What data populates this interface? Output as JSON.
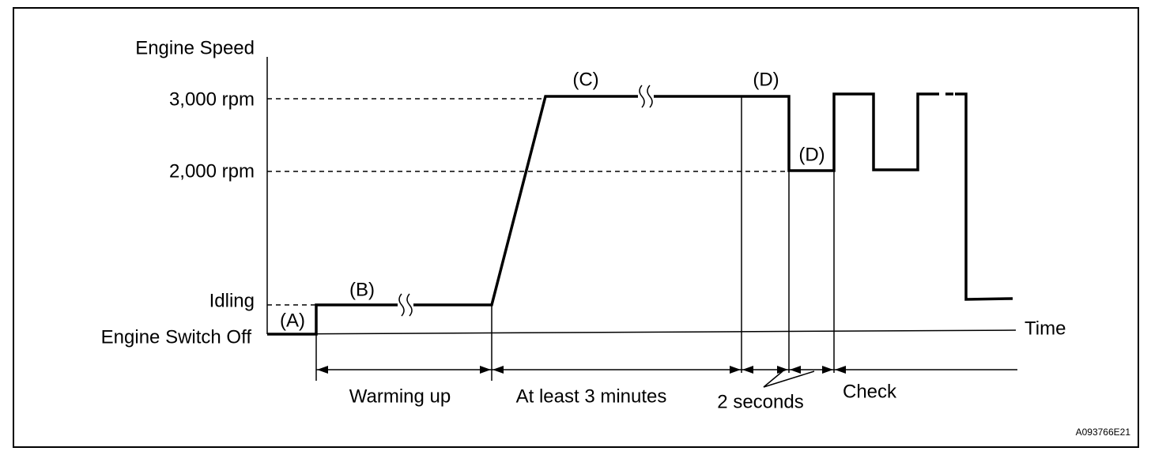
{
  "axis": {
    "title": "Engine Speed",
    "levels": [
      "3,000 rpm",
      "2,000 rpm",
      "Idling",
      "Engine Switch Off"
    ],
    "time": "Time"
  },
  "markers": [
    "(A)",
    "(B)",
    "(C)",
    "(D)",
    "(D)"
  ],
  "durations": [
    "Warming up",
    "At least 3 minutes",
    "2 seconds",
    "Check"
  ],
  "figure_id": "A093766E21"
}
